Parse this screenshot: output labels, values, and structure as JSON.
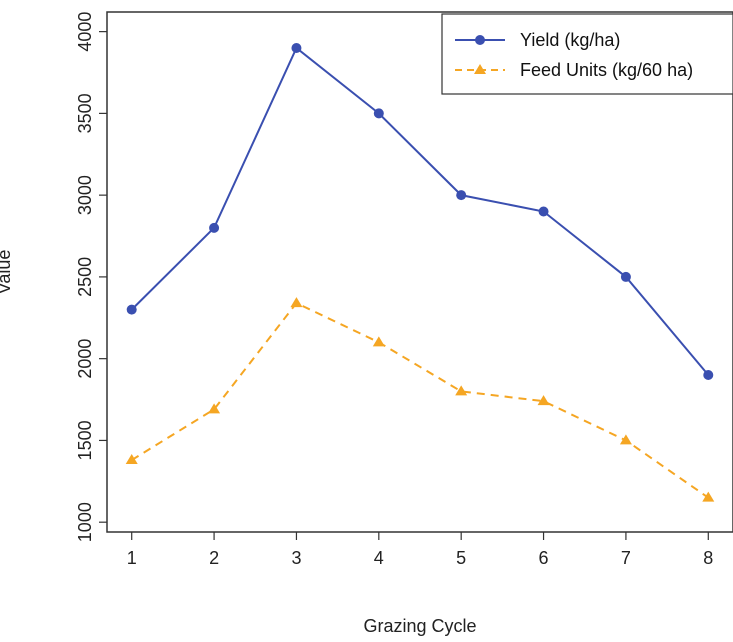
{
  "chart_data": {
    "type": "line",
    "title": "",
    "xlabel": "Grazing Cycle",
    "ylabel": "Value",
    "x": [
      1,
      2,
      3,
      4,
      5,
      6,
      7,
      8
    ],
    "xticks": [
      "1",
      "2",
      "3",
      "4",
      "5",
      "6",
      "7",
      "8"
    ],
    "yticks": [
      "1000",
      "1500",
      "2000",
      "2500",
      "3000",
      "3500",
      "4000"
    ],
    "ylim": [
      940,
      4120
    ],
    "xlim": [
      0.7,
      8.3
    ],
    "grid": false,
    "legend": "top-right",
    "series": [
      {
        "name": "Yield (kg/ha)",
        "values": [
          2300,
          2800,
          3900,
          3500,
          3000,
          2900,
          2500,
          1900
        ],
        "color": "#3a4fb0",
        "line_style": "solid",
        "marker": "circle"
      },
      {
        "name": "Feed Units (kg/60 ha)",
        "values": [
          1380,
          1690,
          2340,
          2100,
          1800,
          1740,
          1500,
          1150
        ],
        "color": "#f5a623",
        "line_style": "dashed",
        "marker": "triangle"
      }
    ]
  }
}
